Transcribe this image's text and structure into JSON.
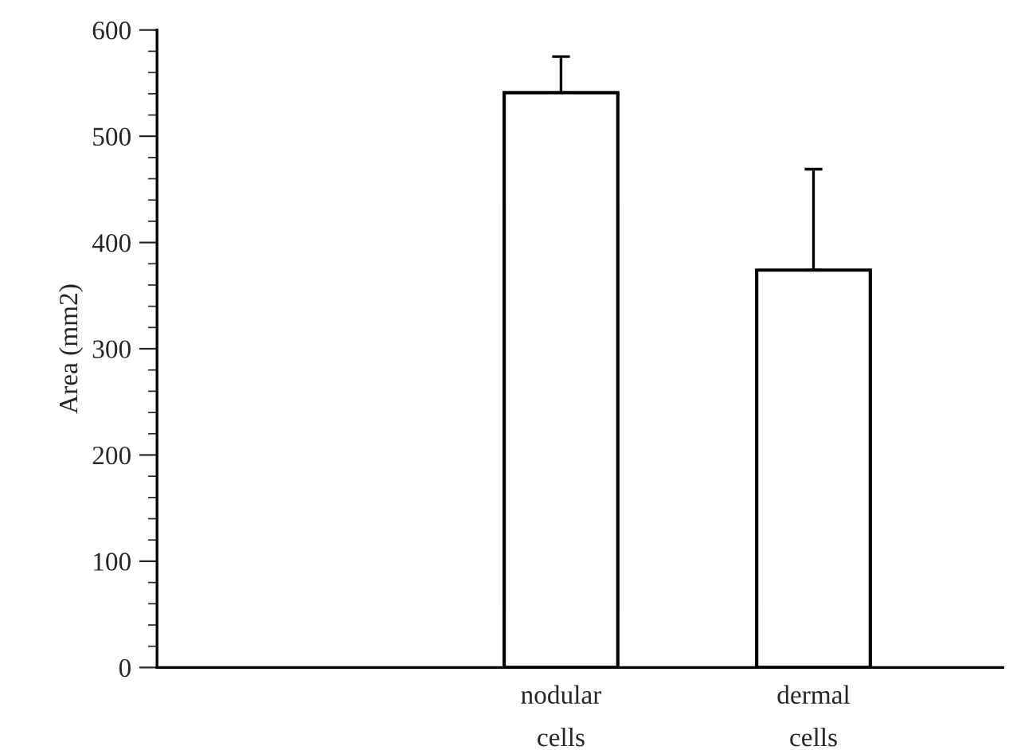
{
  "chart_data": {
    "type": "bar",
    "ylabel": "Area (mm2)",
    "categories": [
      "nodular\ncells",
      "dermal\ncells"
    ],
    "series": [
      {
        "color": "#ffffff",
        "values": [
          541,
          374
        ],
        "errors": [
          [
            541,
            575
          ],
          [
            374,
            469
          ]
        ]
      }
    ],
    "ylim": [
      0,
      600
    ],
    "yticks": [
      0,
      100,
      200,
      300,
      400,
      500,
      600
    ],
    "grid": false,
    "legend": false
  }
}
